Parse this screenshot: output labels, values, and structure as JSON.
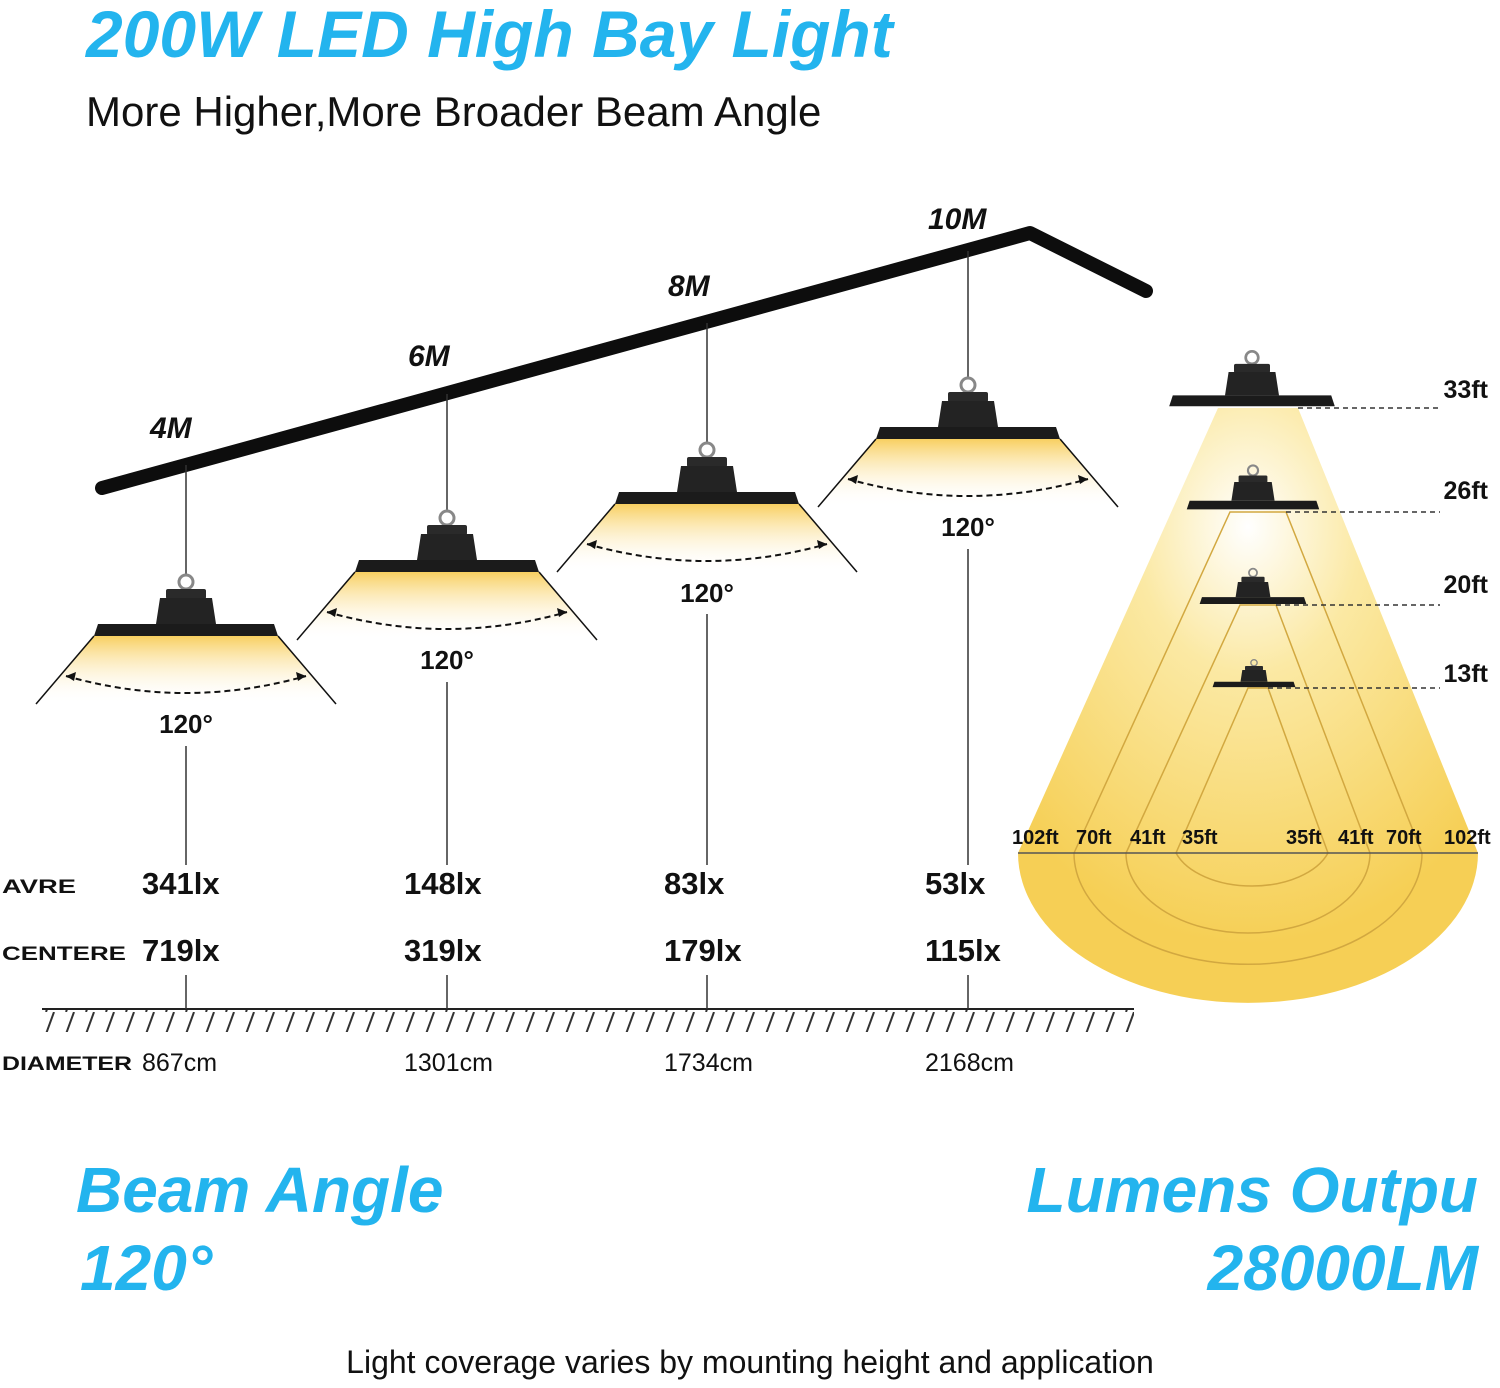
{
  "title": "200W LED High Bay Light",
  "subtitle": "More Higher,More Broader Beam Angle",
  "colors": {
    "accent": "#23b4ee",
    "light": "#fce6a0",
    "cone": "#f8d35c",
    "fixture": "#1e1e1e"
  },
  "fixtures": [
    {
      "height": "4M",
      "angle": "120°",
      "avg": "341lx",
      "center": "719lx",
      "diameter": "867cm"
    },
    {
      "height": "6M",
      "angle": "120°",
      "avg": "148lx",
      "center": "319lx",
      "diameter": "1301cm"
    },
    {
      "height": "8M",
      "angle": "120°",
      "avg": "83lx",
      "center": "179lx",
      "diameter": "1734cm"
    },
    {
      "height": "10M",
      "angle": "120°",
      "avg": "53lx",
      "center": "115lx",
      "diameter": "2168cm"
    }
  ],
  "row_labels": {
    "avg": "AVRE",
    "center": "CENTERE",
    "diameter": "DIAMETER"
  },
  "cone": {
    "heights": [
      "33ft",
      "26ft",
      "20ft",
      "13ft"
    ],
    "left_widths": [
      "102ft",
      "70ft",
      "41ft",
      "35ft"
    ],
    "right_widths": [
      "35ft",
      "41ft",
      "70ft",
      "102ft"
    ]
  },
  "beam": {
    "title": "Beam Angle",
    "value": "120°"
  },
  "lumens": {
    "title": "Lumens Outpu",
    "value": "28000LM"
  },
  "footer": "Light coverage varies by mounting height and application"
}
